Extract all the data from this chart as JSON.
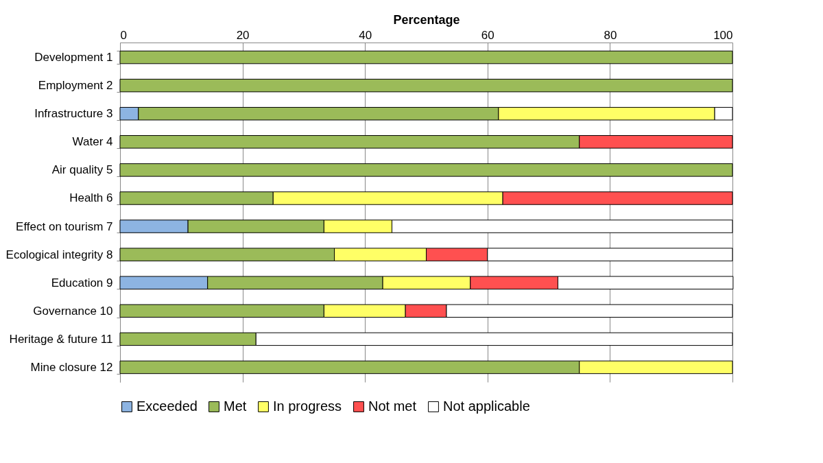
{
  "chart_data": {
    "type": "bar",
    "orientation": "horizontal",
    "stacked": true,
    "xlabel": "Percentage",
    "xlim": [
      0,
      100
    ],
    "xticks": [
      0,
      20,
      40,
      60,
      80,
      100
    ],
    "grid": "x",
    "legend": "bottom",
    "categories": [
      "Development 1",
      "Employment 2",
      "Infrastructure 3",
      "Water 4",
      "Air quality 5",
      "Health 6",
      "Effect on tourism 7",
      "Ecological integrity 8",
      "Education 9",
      "Governance 10",
      "Heritage & future 11",
      "Mine closure 12"
    ],
    "series": [
      {
        "name": "Exceeded",
        "color": "#8db4e2",
        "values": [
          null,
          null,
          3,
          null,
          null,
          null,
          11.1,
          null,
          14.3,
          null,
          null,
          null
        ]
      },
      {
        "name": "Met",
        "color": "#9bbb59",
        "values": [
          100,
          100,
          58.8,
          75,
          100,
          25,
          22.2,
          35,
          28.6,
          33.3,
          22.2,
          75
        ]
      },
      {
        "name": "In progress",
        "color": "#ffff66",
        "values": [
          null,
          null,
          35.3,
          null,
          null,
          37.5,
          11.1,
          15,
          14.3,
          13.3,
          null,
          25
        ]
      },
      {
        "name": "Not met",
        "color": "#ff5050",
        "values": [
          null,
          null,
          null,
          25,
          null,
          37.5,
          null,
          10,
          14.3,
          6.7,
          null,
          null
        ]
      },
      {
        "name": "Not applicable",
        "color": "#ffffff",
        "values": [
          null,
          null,
          2.9,
          null,
          null,
          null,
          55.6,
          40,
          28.6,
          46.7,
          77.8,
          null
        ]
      }
    ]
  }
}
